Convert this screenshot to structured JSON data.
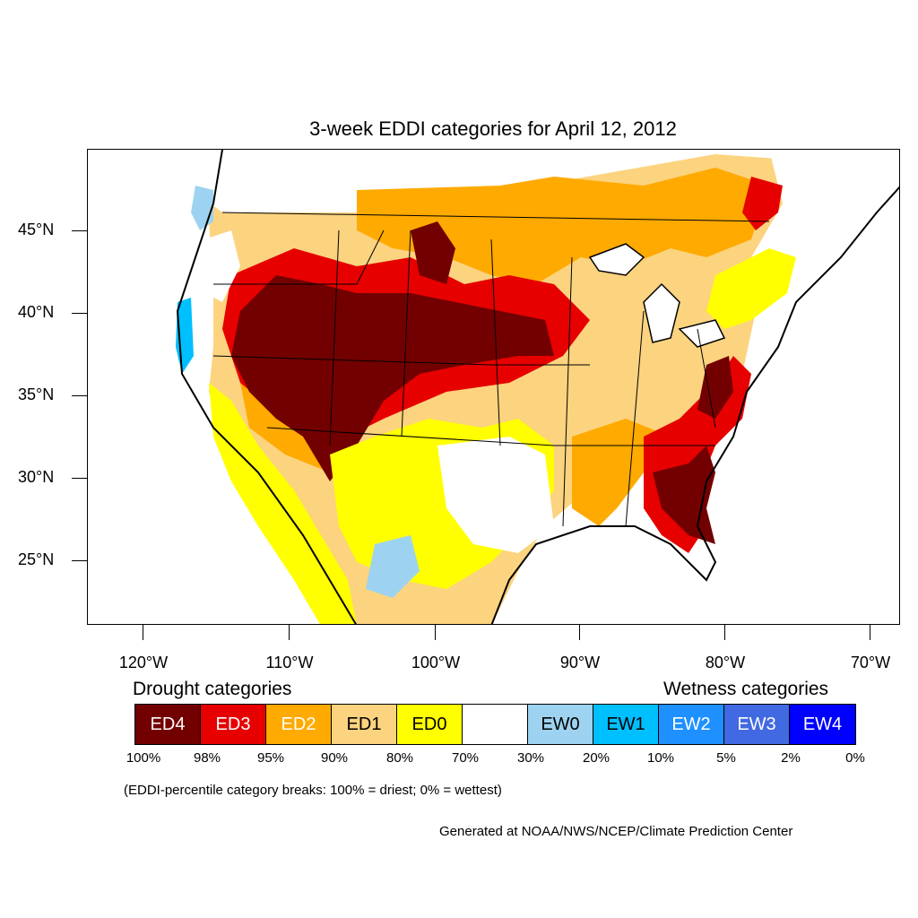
{
  "title": "3-week EDDI categories for April 12, 2012",
  "axes": {
    "lat_labels": [
      "45°N",
      "40°N",
      "35°N",
      "30°N",
      "25°N"
    ],
    "lon_labels": [
      "120°W",
      "110°W",
      "100°W",
      "90°W",
      "80°W",
      "70°W"
    ]
  },
  "legend": {
    "drought_heading": "Drought categories",
    "wetness_heading": "Wetness categories",
    "categories": [
      {
        "label": "ED4",
        "color": "#730000",
        "text_color": "#ffffff"
      },
      {
        "label": "ED3",
        "color": "#e60000",
        "text_color": "#ffffff"
      },
      {
        "label": "ED2",
        "color": "#ffaa00",
        "text_color": "#ffffff"
      },
      {
        "label": "ED1",
        "color": "#fcd37f",
        "text_color": "#000000"
      },
      {
        "label": "ED0",
        "color": "#ffff00",
        "text_color": "#000000"
      },
      {
        "label": "",
        "color": "#ffffff",
        "text_color": "#000000"
      },
      {
        "label": "EW0",
        "color": "#9dd3f0",
        "text_color": "#000000"
      },
      {
        "label": "EW1",
        "color": "#00bfff",
        "text_color": "#000000"
      },
      {
        "label": "EW2",
        "color": "#1e90ff",
        "text_color": "#ffffff"
      },
      {
        "label": "EW3",
        "color": "#4169e1",
        "text_color": "#ffffff"
      },
      {
        "label": "EW4",
        "color": "#0000ff",
        "text_color": "#ffffff"
      }
    ],
    "percentiles": [
      "100%",
      "98%",
      "95%",
      "90%",
      "80%",
      "70%",
      "30%",
      "20%",
      "10%",
      "5%",
      "2%",
      "0%"
    ]
  },
  "note": "(EDDI-percentile category breaks: 100% = driest; 0% = wettest)",
  "credit": "Generated at NOAA/NWS/NCEP/Climate Prediction Center"
}
